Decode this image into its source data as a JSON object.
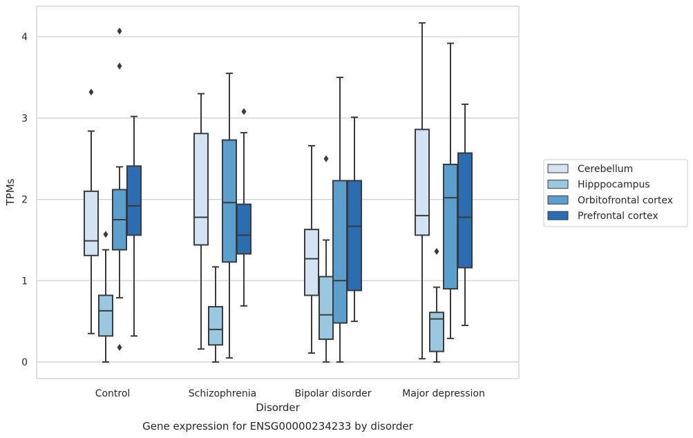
{
  "chart_data": {
    "type": "box",
    "xlabel": "Disorder",
    "ylabel": "TPMs",
    "caption": "Gene expression for ENSG00000234233 by disorder",
    "ylim": [
      -0.2,
      4.38
    ],
    "yticks": [
      0,
      1,
      2,
      3,
      4
    ],
    "grid": "horizontal",
    "legend_position": "right",
    "categories": [
      "Control",
      "Schizophrenia",
      "Bipolar disorder",
      "Major depression"
    ],
    "series": [
      {
        "name": "Cerebellum",
        "color": "#d3e3f3",
        "boxes": [
          {
            "whisker_low": 0.35,
            "q1": 1.31,
            "median": 1.49,
            "q3": 2.1,
            "whisker_high": 2.84,
            "outliers": [
              3.32
            ]
          },
          {
            "whisker_low": 0.16,
            "q1": 1.44,
            "median": 1.78,
            "q3": 2.81,
            "whisker_high": 3.3,
            "outliers": []
          },
          {
            "whisker_low": 0.11,
            "q1": 0.82,
            "median": 1.27,
            "q3": 1.63,
            "whisker_high": 2.66,
            "outliers": []
          },
          {
            "whisker_low": 0.04,
            "q1": 1.56,
            "median": 1.8,
            "q3": 2.86,
            "whisker_high": 4.17,
            "outliers": []
          }
        ]
      },
      {
        "name": "Hipppocampus",
        "color": "#9ac8e0",
        "boxes": [
          {
            "whisker_low": 0.0,
            "q1": 0.32,
            "median": 0.63,
            "q3": 0.82,
            "whisker_high": 1.38,
            "outliers": [
              1.57
            ]
          },
          {
            "whisker_low": 0.0,
            "q1": 0.21,
            "median": 0.4,
            "q3": 0.68,
            "whisker_high": 1.17,
            "outliers": []
          },
          {
            "whisker_low": 0.0,
            "q1": 0.28,
            "median": 0.58,
            "q3": 1.05,
            "whisker_high": 1.5,
            "outliers": [
              2.5
            ]
          },
          {
            "whisker_low": 0.0,
            "q1": 0.13,
            "median": 0.53,
            "q3": 0.61,
            "whisker_high": 0.92,
            "outliers": [
              1.36
            ]
          }
        ]
      },
      {
        "name": "Orbitofrontal cortex",
        "color": "#5a9fcd",
        "boxes": [
          {
            "whisker_low": 0.79,
            "q1": 1.38,
            "median": 1.75,
            "q3": 2.12,
            "whisker_high": 2.4,
            "outliers": [
              0.18,
              3.64,
              4.07
            ]
          },
          {
            "whisker_low": 0.05,
            "q1": 1.23,
            "median": 1.96,
            "q3": 2.73,
            "whisker_high": 3.55,
            "outliers": []
          },
          {
            "whisker_low": 0.0,
            "q1": 0.48,
            "median": 1.0,
            "q3": 2.23,
            "whisker_high": 3.5,
            "outliers": []
          },
          {
            "whisker_low": 0.29,
            "q1": 0.9,
            "median": 2.02,
            "q3": 2.43,
            "whisker_high": 3.92,
            "outliers": []
          }
        ]
      },
      {
        "name": "Prefrontal cortex",
        "color": "#2a6db0",
        "boxes": [
          {
            "whisker_low": 0.32,
            "q1": 1.56,
            "median": 1.92,
            "q3": 2.41,
            "whisker_high": 3.02,
            "outliers": []
          },
          {
            "whisker_low": 0.69,
            "q1": 1.33,
            "median": 1.56,
            "q3": 1.94,
            "whisker_high": 2.82,
            "outliers": [
              3.08
            ]
          },
          {
            "whisker_low": 0.5,
            "q1": 0.88,
            "median": 1.67,
            "q3": 2.23,
            "whisker_high": 3.01,
            "outliers": []
          },
          {
            "whisker_low": 0.45,
            "q1": 1.16,
            "median": 1.78,
            "q3": 2.57,
            "whisker_high": 3.17,
            "outliers": []
          }
        ]
      }
    ],
    "box_edge_color": "#3a3a3a"
  }
}
